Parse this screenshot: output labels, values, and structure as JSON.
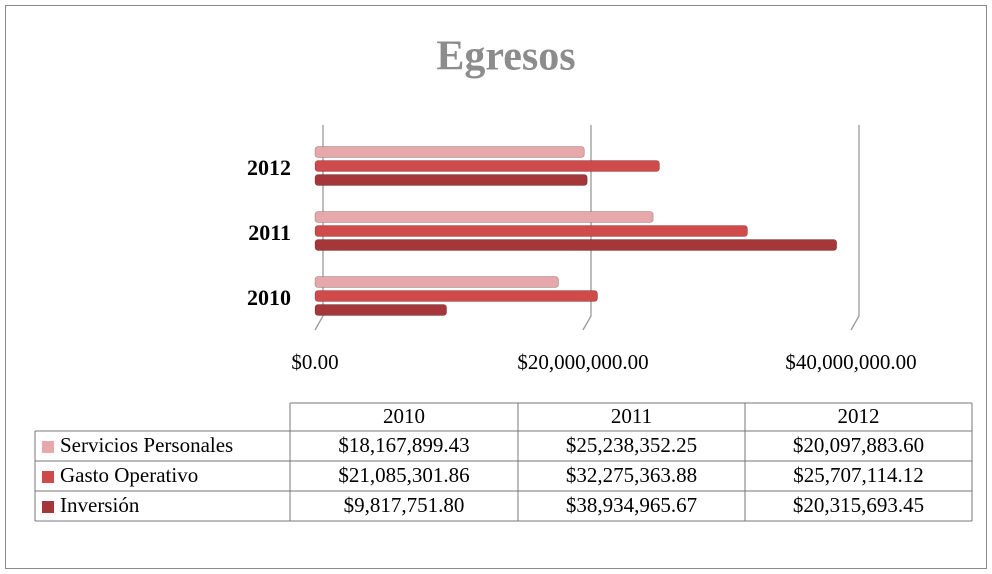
{
  "chart_data": {
    "type": "bar",
    "orientation": "horizontal",
    "title": "Egresos",
    "categories": [
      "2010",
      "2011",
      "2012"
    ],
    "series": [
      {
        "name": "Servicios Personales",
        "color": "#e6a8aa",
        "values": [
          18167899.43,
          25238352.25,
          20097883.6
        ],
        "value_labels": [
          "$18,167,899.43",
          "$25,238,352.25",
          "$20,097,883.60"
        ]
      },
      {
        "name": "Gasto Operativo",
        "color": "#cf4a4a",
        "values": [
          21085301.86,
          32275363.88,
          25707114.12
        ],
        "value_labels": [
          "$21,085,301.86",
          "$32,275,363.88",
          "$25,707,114.12"
        ]
      },
      {
        "name": "Inversión",
        "color": "#a5373a",
        "values": [
          9817751.8,
          38934965.67,
          20315693.45
        ],
        "value_labels": [
          "$9,817,751.80",
          "$38,934,965.67",
          "$20,315,693.45"
        ]
      }
    ],
    "xlim": [
      0,
      40000000
    ],
    "xticks": [
      {
        "value": 0,
        "label": "$0.00"
      },
      {
        "value": 20000000,
        "label": "$20,000,000.00"
      },
      {
        "value": 40000000,
        "label": "$40,000,000.00"
      }
    ],
    "grid": true
  }
}
